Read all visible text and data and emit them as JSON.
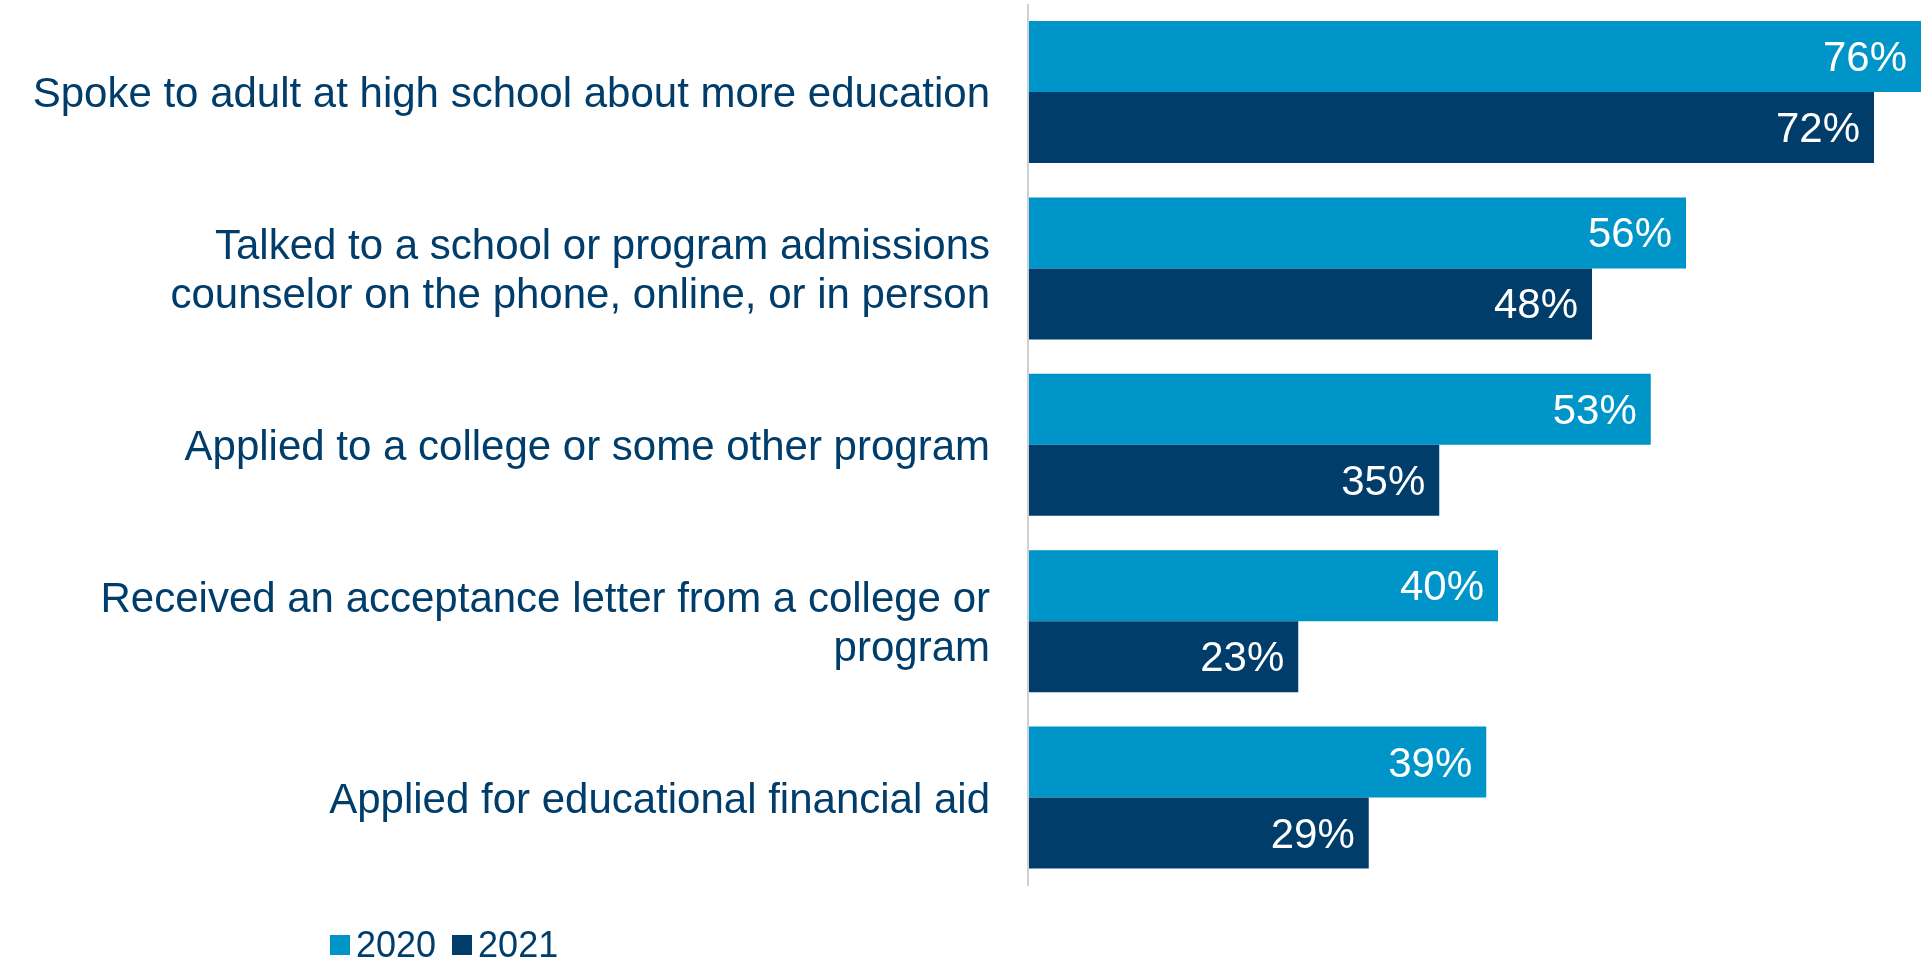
{
  "chart_data": {
    "type": "bar",
    "orientation": "horizontal",
    "categories": [
      "Spoke to adult at high school about more education",
      "Talked to a school or program admissions\ncounselor on the phone, online, or in person",
      "Applied to a college or some other program",
      "Received an acceptance letter from a college or\nprogram",
      "Applied for educational financial aid"
    ],
    "series": [
      {
        "name": "2020",
        "color": "#0095c8",
        "values": [
          76,
          56,
          53,
          40,
          39
        ],
        "value_labels": [
          "76%",
          "56%",
          "53%",
          "40%",
          "39%"
        ]
      },
      {
        "name": "2021",
        "color": "#003d6b",
        "values": [
          72,
          48,
          35,
          23,
          29
        ],
        "value_labels": [
          "72%",
          "48%",
          "35%",
          "23%",
          "29%"
        ]
      }
    ],
    "legend": "bottom left",
    "grid": false
  }
}
